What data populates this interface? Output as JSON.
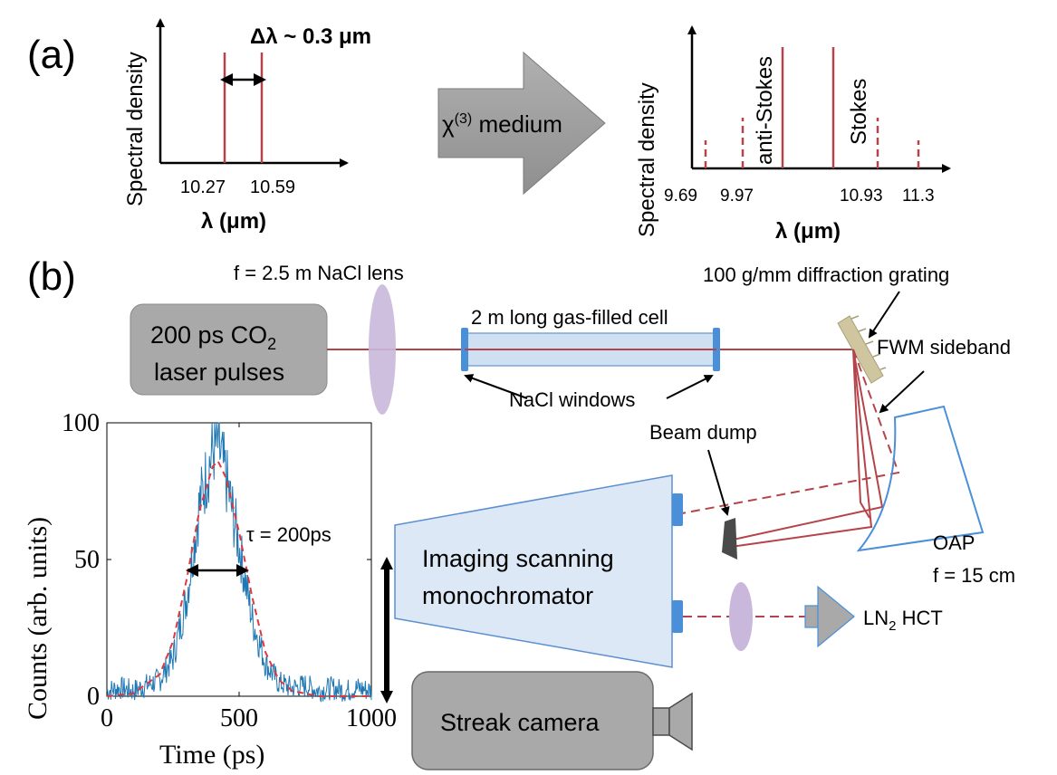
{
  "panel_a": {
    "label": "(a)",
    "left_plot": {
      "ylabel": "Spectral density",
      "xlabel": "λ (μm)",
      "tick_1": "10.27",
      "tick_2": "10.59",
      "delta_label": "Δλ ~ 0.3 μm"
    },
    "arrow_label_main": "χ",
    "arrow_label_sup": "(3)",
    "arrow_label_rest": " medium",
    "right_plot": {
      "ylabel": "Spectral density",
      "xlabel": "λ (μm)",
      "antistokes_label": "anti-Stokes",
      "stokes_label": "Stokes",
      "ticks": [
        "9.69",
        "9.97",
        "10.93",
        "11.3"
      ]
    }
  },
  "panel_b": {
    "label": "(b)",
    "laser_line1": "200 ps CO",
    "laser_sub": "2",
    "laser_line2": "laser pulses",
    "lens_label": "f = 2.5 m NaCl lens",
    "cell_label": "2 m long gas-filled cell",
    "windows_label": "NaCl windows",
    "grating_label": "100 g/mm diffraction grating",
    "fwm_label": "FWM sideband",
    "beam_dump_label": "Beam dump",
    "mono_line1": "Imaging scanning",
    "mono_line2": "monochromator",
    "oap_line1": "OAP",
    "oap_line2": "f = 15 cm",
    "detector_main": "LN",
    "detector_sub": "2",
    "detector_rest": " HCT",
    "streak_label": "Streak camera"
  },
  "inset_chart": {
    "tau_label": "τ = 200ps"
  },
  "colors": {
    "beam": "#b5444a",
    "trace": "#1f77b4",
    "fit": "#e0383b",
    "cell_fill": "#cfe0f3",
    "cell_edge": "#4a90d9",
    "box_gray": "#a9a9a9",
    "lens": "#c9b8dc",
    "grating": "#cfc6a0"
  },
  "chart_data": {
    "type": "line",
    "xlabel": "Time (ps)",
    "ylabel": "Counts (arb. units)",
    "xlim": [
      0,
      1000
    ],
    "ylim": [
      0,
      100
    ],
    "xticks": [
      "0",
      "500",
      "1000"
    ],
    "yticks": [
      "0",
      "50",
      "100"
    ],
    "series": [
      {
        "style": "noisy-solid",
        "x": [
          0,
          50,
          100,
          150,
          200,
          250,
          300,
          350,
          400,
          420,
          450,
          500,
          550,
          600,
          650,
          700,
          750,
          800,
          850,
          900,
          950,
          1000
        ],
        "y": [
          2,
          3,
          2,
          4,
          6,
          14,
          35,
          70,
          90,
          92,
          80,
          55,
          28,
          12,
          5,
          3,
          4,
          2,
          3,
          2,
          3,
          2
        ]
      },
      {
        "style": "dashed-fit",
        "x": [
          0,
          100,
          200,
          250,
          300,
          350,
          400,
          420,
          450,
          500,
          550,
          600,
          650,
          700,
          800,
          900,
          1000
        ],
        "y": [
          0,
          1,
          8,
          20,
          42,
          68,
          84,
          86,
          80,
          60,
          36,
          16,
          6,
          2,
          0,
          0,
          0
        ]
      }
    ]
  }
}
